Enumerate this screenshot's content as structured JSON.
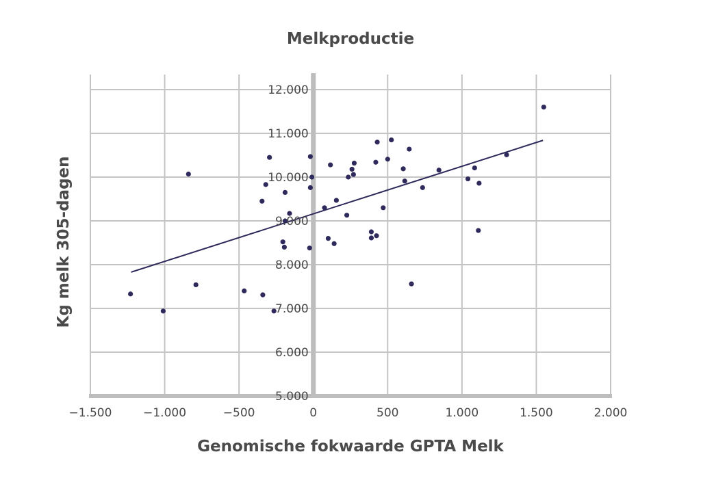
{
  "chart_data": {
    "type": "scatter",
    "title": "Melkproductie",
    "xlabel": "Genomische fokwaarde GPTA Melk",
    "ylabel": "Kg melk 305-dagen",
    "xlim": [
      -1500,
      2000
    ],
    "ylim": [
      5000,
      12000
    ],
    "x_ticks": [
      -1500,
      -1000,
      -500,
      0,
      500,
      1000,
      1500,
      2000
    ],
    "x_tick_labels": [
      "−1.500",
      "−1.000",
      "−500",
      "0",
      "500",
      "1.000",
      "1.500",
      "2.000"
    ],
    "y_ticks": [
      5000,
      6000,
      7000,
      8000,
      9000,
      10000,
      11000,
      12000
    ],
    "y_tick_labels": [
      "5.000",
      "6.000",
      "7.000",
      "8.000",
      "9.000",
      "10.000",
      "11.000",
      "12.000"
    ],
    "grid": true,
    "legend": "none",
    "colors": {
      "points": "#2e2a5c",
      "trendline": "#2e2a5c",
      "grid": "#c4c4c4",
      "zero_axis": "#bdbdbd"
    },
    "points": [
      {
        "x": -1230,
        "y": 7330
      },
      {
        "x": -1010,
        "y": 6940
      },
      {
        "x": -840,
        "y": 10070
      },
      {
        "x": -790,
        "y": 7540
      },
      {
        "x": -465,
        "y": 7400
      },
      {
        "x": -345,
        "y": 9450
      },
      {
        "x": -340,
        "y": 7310
      },
      {
        "x": -320,
        "y": 9830
      },
      {
        "x": -295,
        "y": 10450
      },
      {
        "x": -265,
        "y": 6940
      },
      {
        "x": -205,
        "y": 8520
      },
      {
        "x": -195,
        "y": 8400
      },
      {
        "x": -190,
        "y": 9650
      },
      {
        "x": -190,
        "y": 9000
      },
      {
        "x": -160,
        "y": 9170
      },
      {
        "x": -25,
        "y": 8380
      },
      {
        "x": -20,
        "y": 9760
      },
      {
        "x": -20,
        "y": 10470
      },
      {
        "x": -10,
        "y": 10000
      },
      {
        "x": 75,
        "y": 9300
      },
      {
        "x": 100,
        "y": 8600
      },
      {
        "x": 115,
        "y": 10280
      },
      {
        "x": 140,
        "y": 8480
      },
      {
        "x": 155,
        "y": 9470
      },
      {
        "x": 225,
        "y": 9130
      },
      {
        "x": 235,
        "y": 10000
      },
      {
        "x": 260,
        "y": 10180
      },
      {
        "x": 270,
        "y": 10060
      },
      {
        "x": 275,
        "y": 10320
      },
      {
        "x": 390,
        "y": 8750
      },
      {
        "x": 390,
        "y": 8610
      },
      {
        "x": 420,
        "y": 10340
      },
      {
        "x": 425,
        "y": 8660
      },
      {
        "x": 430,
        "y": 10800
      },
      {
        "x": 470,
        "y": 9300
      },
      {
        "x": 500,
        "y": 10410
      },
      {
        "x": 525,
        "y": 10850
      },
      {
        "x": 605,
        "y": 10190
      },
      {
        "x": 615,
        "y": 9910
      },
      {
        "x": 645,
        "y": 10640
      },
      {
        "x": 660,
        "y": 7560
      },
      {
        "x": 735,
        "y": 9760
      },
      {
        "x": 845,
        "y": 10160
      },
      {
        "x": 1040,
        "y": 9960
      },
      {
        "x": 1085,
        "y": 10210
      },
      {
        "x": 1110,
        "y": 8780
      },
      {
        "x": 1115,
        "y": 9860
      },
      {
        "x": 1300,
        "y": 10510
      },
      {
        "x": 1550,
        "y": 11600
      }
    ],
    "trendline": {
      "x": [
        -1225,
        1545
      ],
      "y": [
        7830,
        10840
      ]
    }
  }
}
